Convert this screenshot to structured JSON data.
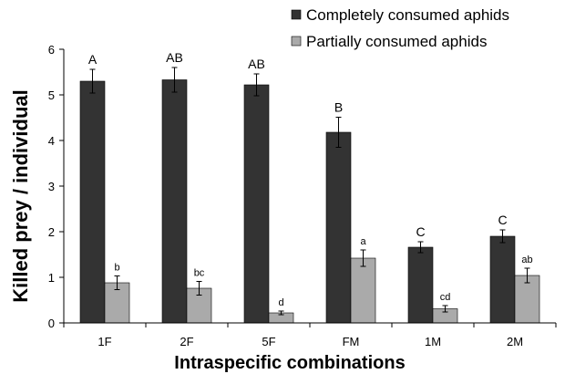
{
  "chart_data": {
    "type": "bar",
    "title": "",
    "xlabel": "Intraspecific combinations",
    "ylabel": "Killed prey / individual",
    "ylim": [
      0,
      6
    ],
    "yticks": [
      "0",
      "1",
      "2",
      "3",
      "4",
      "5",
      "6"
    ],
    "grid": false,
    "legend_position": "top-right",
    "categories": [
      "1F",
      "2F",
      "5F",
      "FM",
      "1M",
      "2M"
    ],
    "series": [
      {
        "name": "Completely consumed aphids",
        "color": "#333333",
        "values": [
          5.3,
          5.33,
          5.22,
          4.18,
          1.66,
          1.9
        ],
        "errors": [
          0.26,
          0.27,
          0.24,
          0.33,
          0.12,
          0.14
        ],
        "letters": [
          "A",
          "AB",
          "AB",
          "B",
          "C",
          "C"
        ]
      },
      {
        "name": "Partially consumed aphids",
        "color": "#aaaaaa",
        "values": [
          0.88,
          0.76,
          0.22,
          1.42,
          0.31,
          1.04
        ],
        "errors": [
          0.15,
          0.15,
          0.04,
          0.18,
          0.07,
          0.16
        ],
        "letters": [
          "b",
          "bc",
          "d",
          "a",
          "cd",
          "ab"
        ]
      }
    ]
  }
}
